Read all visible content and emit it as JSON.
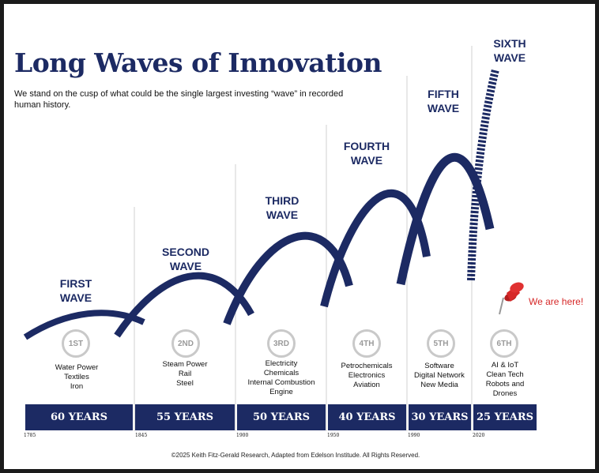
{
  "title": "Long Waves of Innovation",
  "subtitle": "We stand on the cusp of what could be the single largest investing “wave” in recorded human history.",
  "marker_label": "We are here!",
  "footer": "©2025 Keith Fitz-Gerald Research, Adapted from Edelson Institude. All Rights Reserved.",
  "colors": {
    "navy": "#1c2a63",
    "marker": "#d62828",
    "circle": "#c9c9c9"
  },
  "waves": [
    {
      "label_lines": [
        "FIRST",
        "WAVE"
      ],
      "circle": "1ST",
      "industries": [
        "Water Power",
        "Textiles",
        "Iron"
      ],
      "duration": "60 YEARS"
    },
    {
      "label_lines": [
        "SECOND",
        "WAVE"
      ],
      "circle": "2ND",
      "industries": [
        "Steam Power",
        "Rail",
        "Steel"
      ],
      "duration": "55 YEARS"
    },
    {
      "label_lines": [
        "THIRD",
        "WAVE"
      ],
      "circle": "3RD",
      "industries": [
        "Electricity",
        "Chemicals",
        "Internal Combustion",
        "Engine"
      ],
      "duration": "50 YEARS"
    },
    {
      "label_lines": [
        "FOURTH",
        "WAVE"
      ],
      "circle": "4TH",
      "industries": [
        "Petrochemicals",
        "Electronics",
        "Aviation"
      ],
      "duration": "40 YEARS"
    },
    {
      "label_lines": [
        "FIFTH",
        "WAVE"
      ],
      "circle": "5TH",
      "industries": [
        "Software",
        "Digital Network",
        "New Media"
      ],
      "duration": "30 YEARS"
    },
    {
      "label_lines": [
        "SIXTH",
        "WAVE"
      ],
      "circle": "6TH",
      "industries": [
        "AI & IoT",
        "Clean Tech",
        "Robots and",
        "Drones"
      ],
      "duration": "25 YEARS"
    }
  ],
  "years": [
    "1785",
    "1845",
    "1900",
    "1950",
    "1990",
    "2020"
  ]
}
